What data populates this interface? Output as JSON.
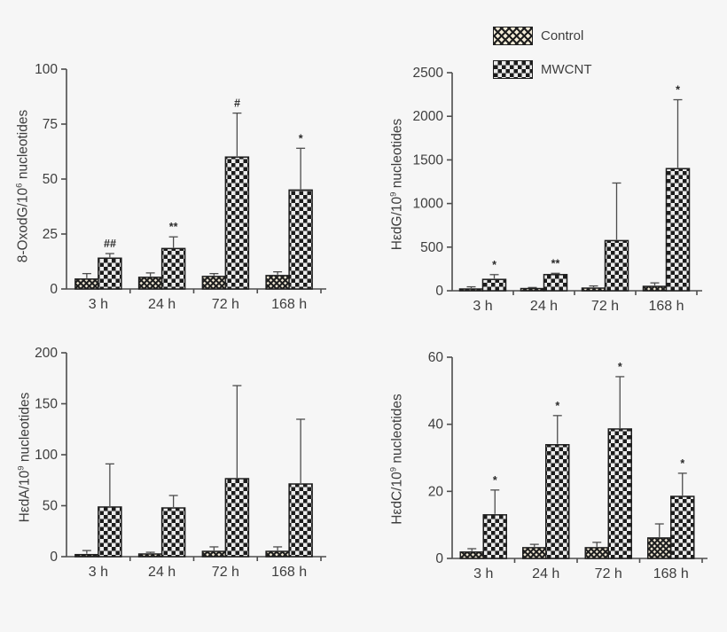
{
  "background": "#f6f6f6",
  "text_color": "#3d3d3d",
  "accent_black": "#1f1f1f",
  "legend": {
    "position": "top-center",
    "items": [
      {
        "label": "Control",
        "pattern": "control"
      },
      {
        "label": "MWCNT",
        "pattern": "mwcnt"
      }
    ]
  },
  "categories": [
    "3 h",
    "24 h",
    "72 h",
    "168 h"
  ],
  "chart_data": [
    {
      "type": "bar",
      "ylabel": {
        "pre": "8-OxodG/10",
        "sup": "6",
        "post": " nucleotides"
      },
      "ylabel_text": "8-OxodG/10^6 nucleotides",
      "ylim": [
        0,
        100
      ],
      "yticks": [
        0,
        25,
        50,
        75,
        100
      ],
      "categories": [
        "3 h",
        "24 h",
        "72 h",
        "168 h"
      ],
      "grid": false,
      "series": [
        {
          "name": "Control",
          "pattern": "control",
          "values": [
            4.5,
            5.3,
            5.7,
            6.1
          ],
          "errors": [
            2.5,
            2.0,
            1.3,
            1.7
          ]
        },
        {
          "name": "MWCNT",
          "pattern": "mwcnt",
          "values": [
            14,
            18.4,
            60,
            45
          ],
          "errors": [
            2.1,
            5.3,
            20,
            19
          ]
        }
      ],
      "annotations": [
        "##",
        "**",
        "#",
        "*"
      ]
    },
    {
      "type": "bar",
      "ylabel": {
        "pre": "HεdG/10",
        "sup": "9",
        "post": " nucleotides"
      },
      "ylabel_text": "HedG/10^9 nucleotides",
      "ylim": [
        0,
        2500
      ],
      "yticks": [
        0,
        500,
        1000,
        1500,
        2000,
        2500
      ],
      "categories": [
        "3 h",
        "24 h",
        "72 h",
        "168 h"
      ],
      "grid": false,
      "series": [
        {
          "name": "Control",
          "pattern": "control",
          "values": [
            20,
            25,
            30,
            50
          ],
          "errors": [
            25,
            12,
            25,
            40
          ]
        },
        {
          "name": "MWCNT",
          "pattern": "mwcnt",
          "values": [
            130,
            185,
            575,
            1400
          ],
          "errors": [
            55,
            15,
            660,
            790
          ]
        }
      ],
      "annotations": [
        "*",
        "**",
        "",
        "*"
      ]
    },
    {
      "type": "bar",
      "ylabel": {
        "pre": "HεdA/10",
        "sup": "9",
        "post": " nucleotides"
      },
      "ylabel_text": "HedA/10^9 nucleotides",
      "ylim": [
        0,
        200
      ],
      "yticks": [
        0,
        50,
        100,
        150,
        200
      ],
      "categories": [
        "3 h",
        "24 h",
        "72 h",
        "168 h"
      ],
      "grid": false,
      "series": [
        {
          "name": "Control",
          "pattern": "control",
          "values": [
            2,
            2.6,
            5.2,
            5.2
          ],
          "errors": [
            4,
            1.7,
            4.4,
            4.4
          ]
        },
        {
          "name": "MWCNT",
          "pattern": "mwcnt",
          "values": [
            48.7,
            47.8,
            76.5,
            71.3
          ],
          "errors": [
            42.3,
            12.2,
            91.3,
            63.5
          ]
        }
      ],
      "annotations": [
        "",
        "",
        "",
        ""
      ]
    },
    {
      "type": "bar",
      "ylabel": {
        "pre": "HεdC/10",
        "sup": "9",
        "post": " nucleotides"
      },
      "ylabel_text": "HedC/10^9 nucleotides",
      "ylim": [
        0,
        60
      ],
      "yticks": [
        0,
        20,
        40,
        60
      ],
      "categories": [
        "3 h",
        "24 h",
        "72 h",
        "168 h"
      ],
      "grid": false,
      "series": [
        {
          "name": "Control",
          "pattern": "control",
          "values": [
            1.9,
            3.2,
            3.2,
            6.1
          ],
          "errors": [
            1.0,
            1.0,
            1.6,
            4.2
          ]
        },
        {
          "name": "MWCNT",
          "pattern": "mwcnt",
          "values": [
            13,
            33.9,
            38.6,
            18.5
          ],
          "errors": [
            7.4,
            8.7,
            15.6,
            6.9
          ]
        }
      ],
      "annotations": [
        "*",
        "*",
        "*",
        "*"
      ]
    }
  ]
}
